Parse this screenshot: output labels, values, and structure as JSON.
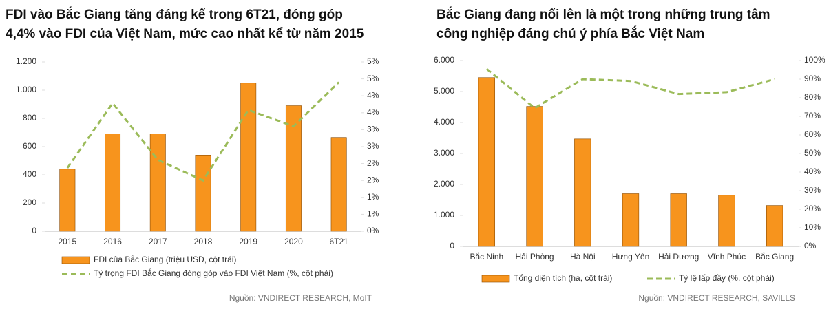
{
  "chart_data": [
    {
      "type": "combo",
      "title": [
        "FDI vào Bắc Giang tăng đáng kể trong 6T21, đóng góp",
        "4,4% vào FDI của Việt Nam, mức cao nhất kể từ năm 2015"
      ],
      "categories": [
        "2015",
        "2016",
        "2017",
        "2018",
        "2019",
        "2020",
        "6T21"
      ],
      "series": [
        {
          "name": "FDI của Bắc Giang (triệu USD, cột trái)",
          "type": "bar",
          "color": "#f7941d",
          "values": [
            440,
            690,
            690,
            540,
            1050,
            890,
            665
          ]
        },
        {
          "name": "Tỷ trọng FDI Bắc Giang đóng góp vào FDI Việt Nam (%, cột phải)",
          "type": "line",
          "axis": "y2",
          "color": "#9bbb59",
          "values": [
            1.87,
            3.78,
            2.11,
            1.5,
            3.58,
            3.1,
            4.4
          ]
        }
      ],
      "ylim": [
        0,
        1200
      ],
      "yticks": [
        0,
        200,
        400,
        600,
        800,
        {
          "value": 1000,
          "label": "1.000"
        },
        {
          "value": 1200,
          "label": "1.200"
        }
      ],
      "y2lim": [
        0,
        5
      ],
      "y2ticks": [
        {
          "value": 0,
          "label": "0%"
        },
        {
          "value": 0.5,
          "label": "1%"
        },
        {
          "value": 1,
          "label": "1%"
        },
        {
          "value": 1.5,
          "label": "2%"
        },
        {
          "value": 2,
          "label": "2%"
        },
        {
          "value": 2.5,
          "label": "3%"
        },
        {
          "value": 3,
          "label": "3%"
        },
        {
          "value": 3.5,
          "label": "4%"
        },
        {
          "value": 4,
          "label": "4%"
        },
        {
          "value": 4.5,
          "label": "5%"
        },
        {
          "value": 5,
          "label": "5%"
        }
      ],
      "legend": "bottom",
      "source": "Nguồn: VNDIRECT RESEARCH, MoIT"
    },
    {
      "type": "combo",
      "title": [
        "Bắc Giang đang nổi lên là một trong những trung tâm",
        "công nghiệp đáng chú ý phía Bắc Việt Nam"
      ],
      "categories": [
        "Bắc Ninh",
        "Hải Phòng",
        "Hà Nội",
        "Hưng Yên",
        "Hải Dương",
        "Vĩnh Phúc",
        "Bắc Giang"
      ],
      "series": [
        {
          "name": "Tổng diện tích (ha, cột trái)",
          "type": "bar",
          "color": "#f7941d",
          "values": [
            5450,
            4520,
            3470,
            1700,
            1700,
            1650,
            1320
          ]
        },
        {
          "name": "Tỷ lệ lấp đầy (%, cột phải)",
          "type": "line",
          "axis": "y2",
          "color": "#9bbb59",
          "values": [
            95.5,
            74.4,
            90,
            89,
            82,
            83,
            90
          ]
        }
      ],
      "ylim": [
        0,
        6000
      ],
      "yticks": [
        0,
        {
          "value": 1000,
          "label": "1.000"
        },
        {
          "value": 2000,
          "label": "2.000"
        },
        {
          "value": 3000,
          "label": "3.000"
        },
        {
          "value": 4000,
          "label": "4.000"
        },
        {
          "value": 5000,
          "label": "5.000"
        },
        {
          "value": 6000,
          "label": "6.000"
        }
      ],
      "y2lim": [
        0,
        100
      ],
      "y2ticks": [
        {
          "value": 0,
          "label": "0%"
        },
        {
          "value": 10,
          "label": "10%"
        },
        {
          "value": 20,
          "label": "20%"
        },
        {
          "value": 30,
          "label": "30%"
        },
        {
          "value": 40,
          "label": "40%"
        },
        {
          "value": 50,
          "label": "50%"
        },
        {
          "value": 60,
          "label": "60%"
        },
        {
          "value": 70,
          "label": "70%"
        },
        {
          "value": 80,
          "label": "80%"
        },
        {
          "value": 90,
          "label": "90%"
        },
        {
          "value": 100,
          "label": "100%"
        }
      ],
      "legend": "bottom",
      "source": "Nguồn: VNDIRECT RESEARCH, SAVILLS"
    }
  ]
}
